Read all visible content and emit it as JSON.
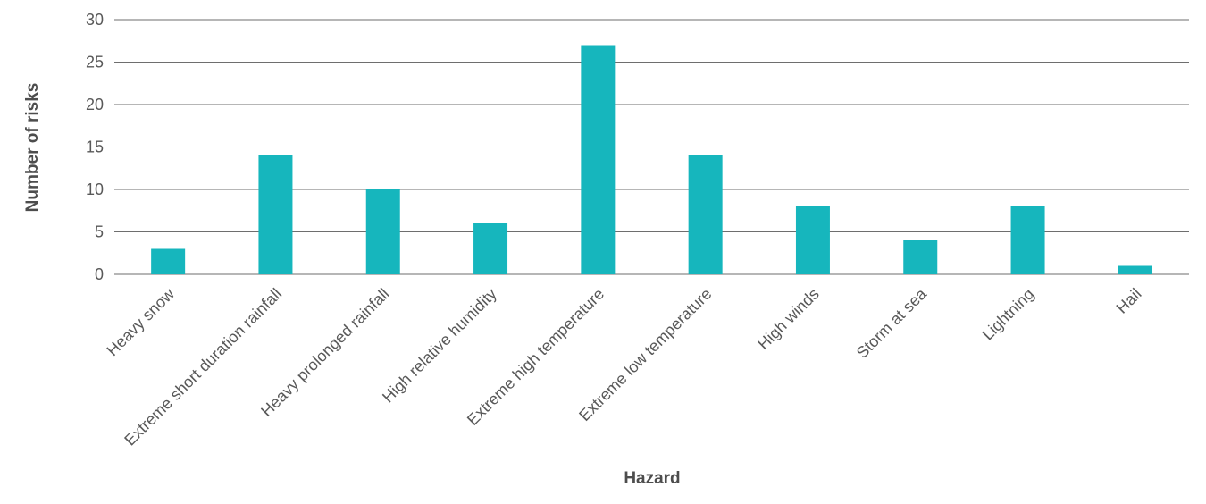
{
  "chart_data": {
    "type": "bar",
    "title": "",
    "xlabel": "Hazard",
    "ylabel": "Number of risks",
    "ylim": [
      0,
      30
    ],
    "yticks": [
      0,
      5,
      10,
      15,
      20,
      25,
      30
    ],
    "grid": true,
    "legend": "none",
    "bar_color": "#16b6bd",
    "categories": [
      "Heavy snow",
      "Extreme short duration rainfall",
      "Heavy prolonged rainfall",
      "High relative humidity",
      "Extreme high temperature",
      "Extreme low temperature",
      "High winds",
      "Storm at sea",
      "Lightning",
      "Hail"
    ],
    "values": [
      3,
      14,
      10,
      6,
      27,
      14,
      8,
      4,
      8,
      1
    ]
  }
}
